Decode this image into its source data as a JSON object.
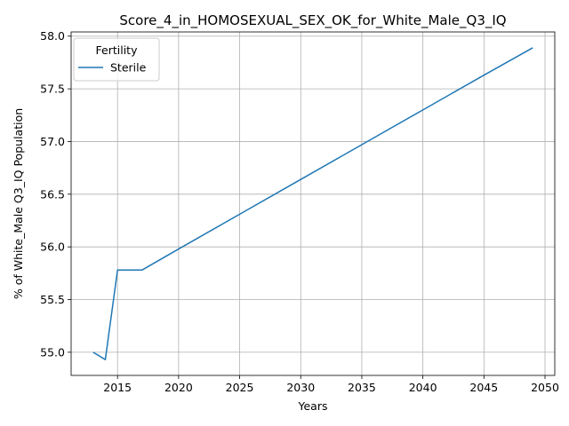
{
  "chart_data": {
    "type": "line",
    "title": "Score_4_in_HOMOSEXUAL_SEX_OK_for_White_Male_Q3_IQ",
    "xlabel": "Years",
    "ylabel": "% of White_Male Q3_IQ Population",
    "xlim": [
      2011.2,
      2050.8
    ],
    "ylim": [
      54.78,
      58.04
    ],
    "xticks": [
      2015,
      2020,
      2025,
      2030,
      2035,
      2040,
      2045,
      2050
    ],
    "yticks": [
      55.0,
      55.5,
      56.0,
      56.5,
      57.0,
      57.5,
      58.0
    ],
    "grid": true,
    "legend": {
      "title": "Fertility",
      "position": "upper-left"
    },
    "series": [
      {
        "name": "Sterile",
        "color": "#1f77b4",
        "x": [
          2013,
          2014,
          2015,
          2016,
          2017,
          2020,
          2025,
          2030,
          2035,
          2040,
          2045,
          2049
        ],
        "y": [
          55.0,
          54.93,
          55.78,
          55.78,
          55.78,
          55.98,
          56.31,
          56.64,
          56.97,
          57.3,
          57.63,
          57.89
        ]
      }
    ]
  }
}
